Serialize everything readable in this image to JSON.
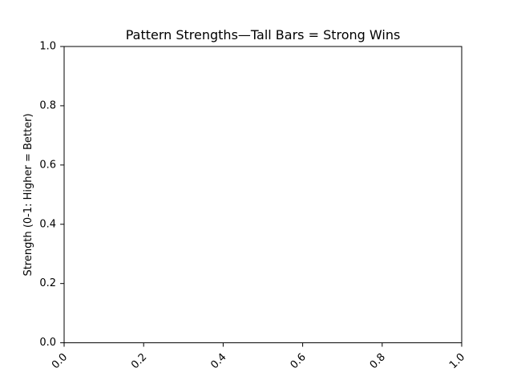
{
  "chart_data": {
    "type": "bar",
    "title": "Pattern Strengths—Tall Bars = Strong Wins",
    "xlabel": "",
    "ylabel": "Strength (0-1: Higher = Better)",
    "xlim": [
      0.0,
      1.0
    ],
    "ylim": [
      0.0,
      1.0
    ],
    "x_ticks": [
      "0.0",
      "0.2",
      "0.4",
      "0.6",
      "0.8",
      "1.0"
    ],
    "y_ticks": [
      "0.0",
      "0.2",
      "0.4",
      "0.6",
      "0.8",
      "1.0"
    ],
    "x_tick_rotation_deg": 45,
    "grid": false,
    "legend": "none",
    "categories": [],
    "values": []
  }
}
